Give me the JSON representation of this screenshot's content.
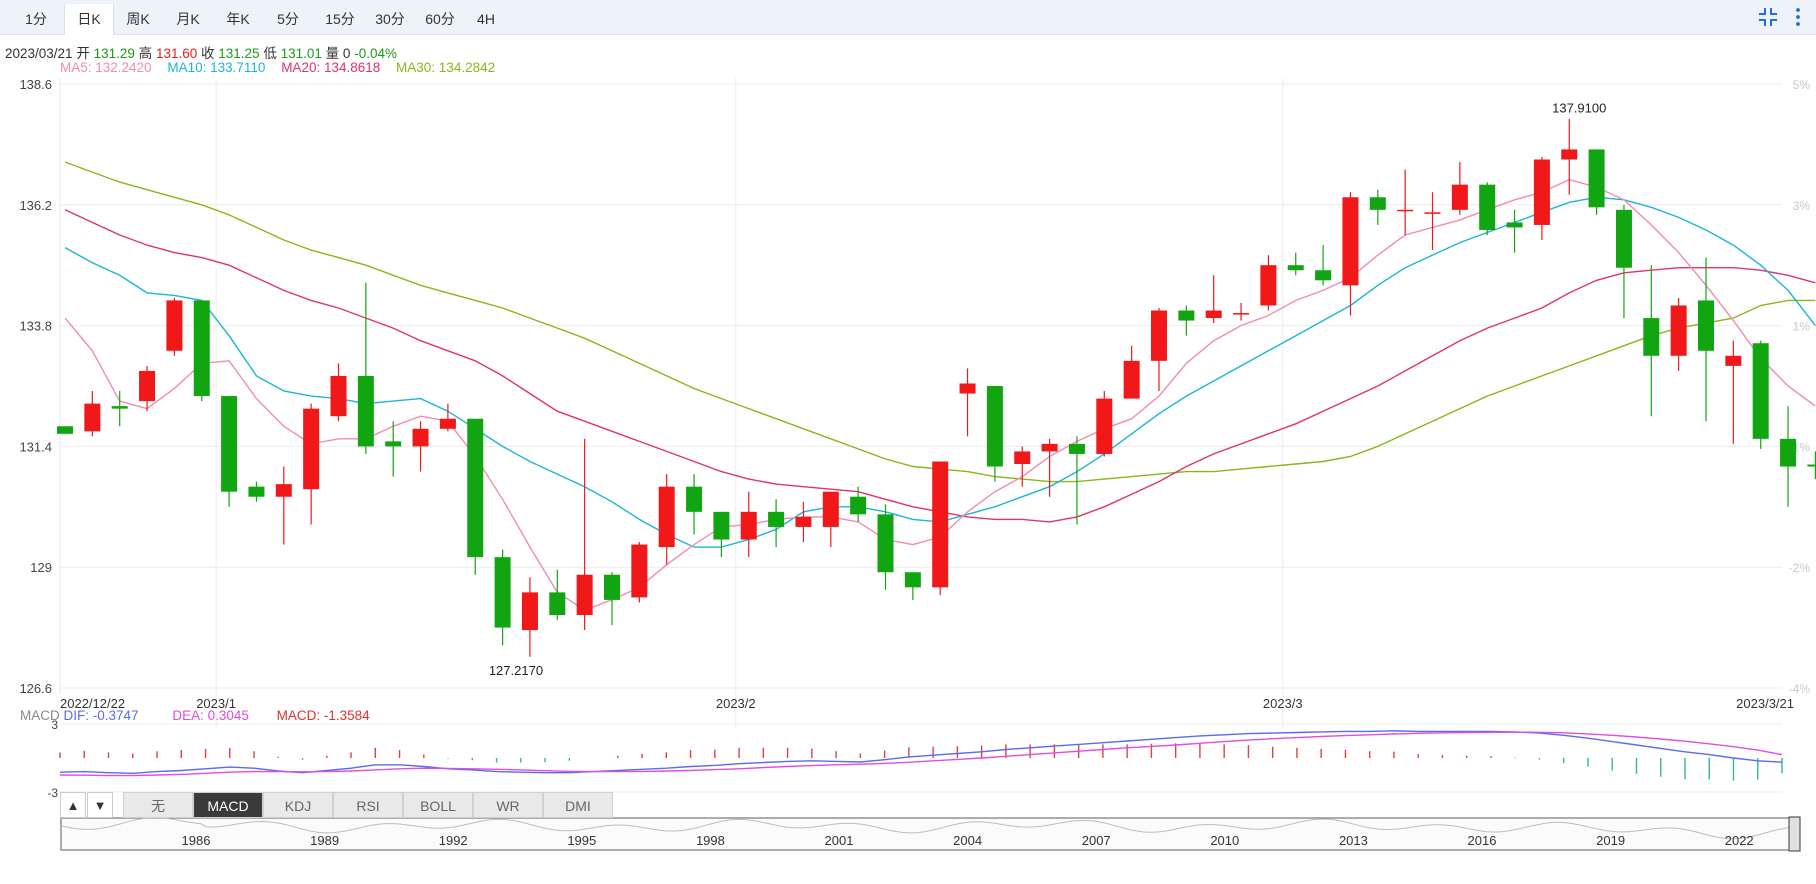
{
  "tabs": [
    {
      "label": "1分"
    },
    {
      "label": "日K"
    },
    {
      "label": "周K"
    },
    {
      "label": "月K"
    },
    {
      "label": "年K"
    },
    {
      "label": "5分"
    },
    {
      "label": "15分"
    },
    {
      "label": "30分"
    },
    {
      "label": "60分"
    },
    {
      "label": "4H"
    }
  ],
  "active_tab": "日K",
  "icons": {
    "compress": "compress-icon",
    "more": "more-vertical-icon"
  },
  "info": {
    "date": "2023/03/21",
    "open_label": "开",
    "open": "131.29",
    "high_label": "高",
    "high": "131.60",
    "close_label": "收",
    "close": "131.25",
    "low_label": "低",
    "low": "131.01",
    "vol_label": "量",
    "vol": "0",
    "change": "-0.04%"
  },
  "ma": {
    "ma5": "MA5: 132.2420",
    "ma10": "MA10: 133.7110",
    "ma20": "MA20: 134.8618",
    "ma30": "MA30: 134.2842"
  },
  "macd_info": {
    "label": "MACD",
    "dif": "DIF: -0.3747",
    "dea": "DEA: 0.3045",
    "macd": "MACD: -1.3584"
  },
  "indicator_tabs": [
    "无",
    "MACD",
    "KDJ",
    "RSI",
    "BOLL",
    "WR",
    "DMI"
  ],
  "active_indicator": "MACD",
  "nav_years": [
    "1986",
    "1989",
    "1992",
    "1995",
    "1998",
    "2001",
    "2004",
    "2007",
    "2010",
    "2013",
    "2016",
    "2019",
    "2022"
  ],
  "colors": {
    "up": "#f01818",
    "down": "#12a512",
    "ma5": "#f28cb2",
    "ma10": "#1bb6d6",
    "ma20": "#e0336a",
    "ma30": "#8ab61a",
    "dif": "#5b6af0",
    "dea": "#e24ce0",
    "brand": "#1e6fd6"
  },
  "chart_data": {
    "type": "candlestick",
    "ylim": [
      126.6,
      138.6
    ],
    "y_ticks": [
      "138.6",
      "136.2",
      "133.8",
      "131.4",
      "129",
      "126.6"
    ],
    "pct_ticks": [
      "5%",
      "3%",
      "1%",
      "-1%",
      "-2%",
      "-4%"
    ],
    "x_labels": [
      "2022/12/22",
      "2023/1",
      "2023/2",
      "2023/3",
      "2023/3/21"
    ],
    "high_label": "137.9100",
    "low_label": "127.2170",
    "candles": [
      {
        "o": 131.8,
        "c": 131.65,
        "h": 131.8,
        "l": 131.65
      },
      {
        "o": 131.7,
        "c": 132.25,
        "h": 132.5,
        "l": 131.6
      },
      {
        "o": 132.2,
        "c": 132.15,
        "h": 132.5,
        "l": 131.8
      },
      {
        "o": 132.3,
        "c": 132.9,
        "h": 133.0,
        "l": 132.1
      },
      {
        "o": 133.3,
        "c": 134.3,
        "h": 134.35,
        "l": 133.2
      },
      {
        "o": 134.3,
        "c": 132.4,
        "h": 134.3,
        "l": 132.3
      },
      {
        "o": 132.4,
        "c": 130.5,
        "h": 132.4,
        "l": 130.2
      },
      {
        "o": 130.6,
        "c": 130.4,
        "h": 130.7,
        "l": 130.3
      },
      {
        "o": 130.4,
        "c": 130.65,
        "h": 131.0,
        "l": 129.45
      },
      {
        "o": 130.55,
        "c": 132.15,
        "h": 132.25,
        "l": 129.85
      },
      {
        "o": 132.0,
        "c": 132.8,
        "h": 133.05,
        "l": 131.9
      },
      {
        "o": 132.8,
        "c": 131.4,
        "h": 134.65,
        "l": 131.25
      },
      {
        "o": 131.5,
        "c": 131.4,
        "h": 131.9,
        "l": 130.8
      },
      {
        "o": 131.4,
        "c": 131.75,
        "h": 131.9,
        "l": 130.9
      },
      {
        "o": 131.75,
        "c": 131.95,
        "h": 132.25,
        "l": 131.7
      },
      {
        "o": 131.95,
        "c": 129.2,
        "h": 131.95,
        "l": 128.85
      },
      {
        "o": 129.2,
        "c": 127.8,
        "h": 129.35,
        "l": 127.45
      },
      {
        "o": 127.75,
        "c": 128.5,
        "h": 128.8,
        "l": 127.22
      },
      {
        "o": 128.5,
        "c": 128.05,
        "h": 128.95,
        "l": 127.95
      },
      {
        "o": 128.05,
        "c": 128.85,
        "h": 131.55,
        "l": 127.75
      },
      {
        "o": 128.85,
        "c": 128.35,
        "h": 128.9,
        "l": 127.85
      },
      {
        "o": 128.4,
        "c": 129.45,
        "h": 129.5,
        "l": 128.3
      },
      {
        "o": 129.4,
        "c": 130.6,
        "h": 130.85,
        "l": 129.05
      },
      {
        "o": 130.6,
        "c": 130.1,
        "h": 130.85,
        "l": 129.65
      },
      {
        "o": 130.1,
        "c": 129.55,
        "h": 130.1,
        "l": 129.2
      },
      {
        "o": 129.55,
        "c": 130.1,
        "h": 130.5,
        "l": 129.2
      },
      {
        "o": 130.1,
        "c": 129.8,
        "h": 130.35,
        "l": 129.4
      },
      {
        "o": 129.8,
        "c": 130.0,
        "h": 130.3,
        "l": 129.5
      },
      {
        "o": 129.8,
        "c": 130.5,
        "h": 130.5,
        "l": 129.4
      },
      {
        "o": 130.4,
        "c": 130.05,
        "h": 130.6,
        "l": 129.9
      },
      {
        "o": 130.05,
        "c": 128.9,
        "h": 130.25,
        "l": 128.55
      },
      {
        "o": 128.9,
        "c": 128.6,
        "h": 128.9,
        "l": 128.35
      },
      {
        "o": 128.6,
        "c": 131.1,
        "h": 131.1,
        "l": 128.45
      },
      {
        "o": 132.45,
        "c": 132.65,
        "h": 132.95,
        "l": 131.6
      },
      {
        "o": 132.6,
        "c": 131.0,
        "h": 132.6,
        "l": 130.7
      },
      {
        "o": 131.05,
        "c": 131.3,
        "h": 131.4,
        "l": 130.6
      },
      {
        "o": 131.3,
        "c": 131.45,
        "h": 131.55,
        "l": 130.4
      },
      {
        "o": 131.45,
        "c": 131.25,
        "h": 131.6,
        "l": 129.85
      },
      {
        "o": 131.25,
        "c": 132.35,
        "h": 132.5,
        "l": 131.2
      },
      {
        "o": 132.35,
        "c": 133.1,
        "h": 133.4,
        "l": 132.35
      },
      {
        "o": 133.1,
        "c": 134.1,
        "h": 134.15,
        "l": 132.5
      },
      {
        "o": 134.1,
        "c": 133.9,
        "h": 134.2,
        "l": 133.6
      },
      {
        "o": 133.95,
        "c": 134.1,
        "h": 134.8,
        "l": 133.85
      },
      {
        "o": 134.05,
        "c": 134.05,
        "h": 134.25,
        "l": 133.9
      },
      {
        "o": 134.2,
        "c": 135.0,
        "h": 135.2,
        "l": 134.1
      },
      {
        "o": 135.0,
        "c": 134.9,
        "h": 135.25,
        "l": 134.8
      },
      {
        "o": 134.9,
        "c": 134.7,
        "h": 135.4,
        "l": 134.6
      },
      {
        "o": 134.6,
        "c": 136.35,
        "h": 136.45,
        "l": 134.0
      },
      {
        "o": 136.35,
        "c": 136.1,
        "h": 136.5,
        "l": 135.8
      },
      {
        "o": 136.1,
        "c": 136.1,
        "h": 136.9,
        "l": 135.6
      },
      {
        "o": 136.05,
        "c": 136.05,
        "h": 136.45,
        "l": 135.3
      },
      {
        "o": 136.1,
        "c": 136.6,
        "h": 137.05,
        "l": 136.0
      },
      {
        "o": 136.6,
        "c": 135.7,
        "h": 136.65,
        "l": 135.6
      },
      {
        "o": 135.85,
        "c": 135.75,
        "h": 136.1,
        "l": 135.25
      },
      {
        "o": 135.8,
        "c": 137.1,
        "h": 137.15,
        "l": 135.5
      },
      {
        "o": 137.1,
        "c": 137.3,
        "h": 137.91,
        "l": 136.4
      },
      {
        "o": 137.3,
        "c": 136.15,
        "h": 137.3,
        "l": 136.0
      },
      {
        "o": 136.1,
        "c": 134.95,
        "h": 136.2,
        "l": 133.95
      },
      {
        "o": 133.95,
        "c": 133.2,
        "h": 135.0,
        "l": 132.0
      },
      {
        "o": 133.2,
        "c": 134.2,
        "h": 134.35,
        "l": 132.9
      },
      {
        "o": 134.3,
        "c": 133.3,
        "h": 135.15,
        "l": 131.9
      },
      {
        "o": 133.0,
        "c": 133.2,
        "h": 133.5,
        "l": 131.45
      },
      {
        "o": 133.45,
        "c": 131.55,
        "h": 133.5,
        "l": 131.35
      },
      {
        "o": 131.55,
        "c": 131.0,
        "h": 132.2,
        "l": 130.2
      },
      {
        "o": 131.04,
        "c": 131.0,
        "h": 131.3,
        "l": 130.75
      }
    ],
    "ma5": [
      133.95,
      133.3,
      132.3,
      132.15,
      132.55,
      133.05,
      133.1,
      132.35,
      131.8,
      131.45,
      131.55,
      131.55,
      131.8,
      132.0,
      131.9,
      131.2,
      130.35,
      129.4,
      128.5,
      128.15,
      128.35,
      128.6,
      129.05,
      129.45,
      129.8,
      129.85,
      129.95,
      130.0,
      130.0,
      129.9,
      129.55,
      129.45,
      129.6,
      130.1,
      130.5,
      130.8,
      131.2,
      131.5,
      131.75,
      131.95,
      132.4,
      133.05,
      133.5,
      133.8,
      134.0,
      134.3,
      134.5,
      134.75,
      135.2,
      135.6,
      135.75,
      135.9,
      136.1,
      136.3,
      136.45,
      136.7,
      136.55,
      136.3,
      135.8,
      135.25,
      134.6,
      133.9,
      133.15,
      132.6,
      132.2
    ],
    "ma10": [
      135.35,
      135.05,
      134.8,
      134.45,
      134.4,
      134.3,
      133.6,
      132.8,
      132.5,
      132.4,
      132.35,
      132.25,
      132.3,
      132.35,
      132.1,
      131.75,
      131.4,
      131.1,
      130.85,
      130.6,
      130.3,
      129.95,
      129.65,
      129.4,
      129.4,
      129.55,
      129.75,
      130.1,
      130.2,
      130.2,
      130.1,
      129.95,
      129.9,
      130.05,
      130.2,
      130.4,
      130.6,
      130.9,
      131.25,
      131.65,
      132.05,
      132.4,
      132.7,
      133.0,
      133.3,
      133.6,
      133.9,
      134.2,
      134.6,
      134.95,
      135.2,
      135.45,
      135.65,
      135.85,
      136.05,
      136.25,
      136.35,
      136.3,
      136.15,
      135.95,
      135.7,
      135.4,
      135.0,
      134.5,
      133.8
    ],
    "ma20": [
      136.1,
      135.85,
      135.6,
      135.4,
      135.25,
      135.15,
      135.0,
      134.75,
      134.5,
      134.3,
      134.15,
      133.95,
      133.75,
      133.5,
      133.3,
      133.1,
      132.8,
      132.45,
      132.1,
      131.9,
      131.7,
      131.5,
      131.3,
      131.1,
      130.9,
      130.75,
      130.65,
      130.6,
      130.55,
      130.5,
      130.35,
      130.2,
      130.1,
      130.0,
      129.95,
      129.95,
      129.9,
      130.0,
      130.2,
      130.45,
      130.7,
      131.0,
      131.25,
      131.45,
      131.65,
      131.85,
      132.1,
      132.35,
      132.6,
      132.9,
      133.2,
      133.5,
      133.75,
      133.95,
      134.15,
      134.45,
      134.7,
      134.85,
      134.9,
      134.95,
      134.95,
      134.95,
      134.9,
      134.8,
      134.65
    ],
    "ma30": [
      137.05,
      136.85,
      136.65,
      136.5,
      136.35,
      136.2,
      136.0,
      135.75,
      135.5,
      135.3,
      135.15,
      135.0,
      134.8,
      134.6,
      134.45,
      134.3,
      134.15,
      133.95,
      133.75,
      133.55,
      133.3,
      133.05,
      132.8,
      132.55,
      132.35,
      132.15,
      131.95,
      131.75,
      131.55,
      131.35,
      131.15,
      131.0,
      130.95,
      130.9,
      130.8,
      130.75,
      130.7,
      130.7,
      130.75,
      130.8,
      130.85,
      130.9,
      130.9,
      130.95,
      131.0,
      131.05,
      131.1,
      131.2,
      131.4,
      131.65,
      131.9,
      132.15,
      132.4,
      132.6,
      132.8,
      133.0,
      133.2,
      133.4,
      133.6,
      133.75,
      133.85,
      133.95,
      134.2,
      134.3,
      134.3
    ],
    "macd_ylim": [
      -3,
      3
    ],
    "macd_ticks": [
      "3",
      "-3"
    ],
    "dif": [
      -1.25,
      -1.2,
      -1.3,
      -1.35,
      -1.2,
      -1.1,
      -0.95,
      -0.8,
      -0.9,
      -1.15,
      -1.3,
      -1.1,
      -0.9,
      -0.6,
      -0.6,
      -0.75,
      -0.95,
      -1.05,
      -1.2,
      -1.25,
      -1.3,
      -1.3,
      -1.2,
      -1.1,
      -1.0,
      -0.9,
      -0.75,
      -0.65,
      -0.5,
      -0.4,
      -0.3,
      -0.25,
      -0.3,
      -0.35,
      -0.15,
      0.1,
      0.25,
      0.4,
      0.55,
      0.75,
      0.9,
      1.05,
      1.2,
      1.35,
      1.5,
      1.65,
      1.8,
      1.95,
      2.05,
      2.15,
      2.2,
      2.25,
      2.3,
      2.35,
      2.35,
      2.4,
      2.35,
      2.35,
      2.35,
      2.35,
      2.3,
      2.2,
      2.0,
      1.75,
      1.45,
      1.15,
      0.85,
      0.55,
      0.3,
      0.0,
      -0.25,
      -0.37
    ],
    "dea": [
      -1.5,
      -1.52,
      -1.55,
      -1.55,
      -1.5,
      -1.45,
      -1.35,
      -1.25,
      -1.2,
      -1.2,
      -1.22,
      -1.2,
      -1.15,
      -1.05,
      -0.95,
      -0.9,
      -0.92,
      -0.95,
      -1.0,
      -1.05,
      -1.12,
      -1.18,
      -1.2,
      -1.2,
      -1.18,
      -1.15,
      -1.1,
      -1.02,
      -0.95,
      -0.85,
      -0.75,
      -0.67,
      -0.6,
      -0.55,
      -0.48,
      -0.38,
      -0.25,
      -0.12,
      0.0,
      0.15,
      0.3,
      0.45,
      0.6,
      0.75,
      0.9,
      1.02,
      1.15,
      1.3,
      1.45,
      1.58,
      1.7,
      1.8,
      1.9,
      1.98,
      2.05,
      2.12,
      2.18,
      2.22,
      2.25,
      2.27,
      2.28,
      2.27,
      2.22,
      2.13,
      2.0,
      1.85,
      1.68,
      1.48,
      1.25,
      1.0,
      0.7,
      0.3
    ],
    "macd": [
      0.5,
      0.64,
      0.5,
      0.4,
      0.6,
      0.7,
      0.8,
      0.9,
      0.6,
      0.1,
      -0.16,
      0.2,
      0.5,
      0.9,
      0.7,
      0.3,
      -0.06,
      -0.2,
      -0.4,
      -0.4,
      -0.36,
      -0.24,
      0.0,
      0.2,
      0.36,
      0.5,
      0.7,
      0.74,
      0.9,
      0.9,
      0.9,
      0.84,
      0.6,
      0.4,
      0.66,
      0.96,
      1.0,
      1.04,
      1.1,
      1.2,
      1.2,
      1.2,
      1.2,
      1.2,
      1.2,
      1.26,
      1.3,
      1.3,
      1.2,
      1.14,
      1.0,
      0.9,
      0.8,
      0.74,
      0.6,
      0.56,
      0.34,
      0.26,
      0.2,
      0.16,
      0.04,
      -0.14,
      -0.44,
      -0.76,
      -1.1,
      -1.4,
      -1.66,
      -1.86,
      -1.9,
      -2.0,
      -1.9,
      -1.36
    ]
  }
}
